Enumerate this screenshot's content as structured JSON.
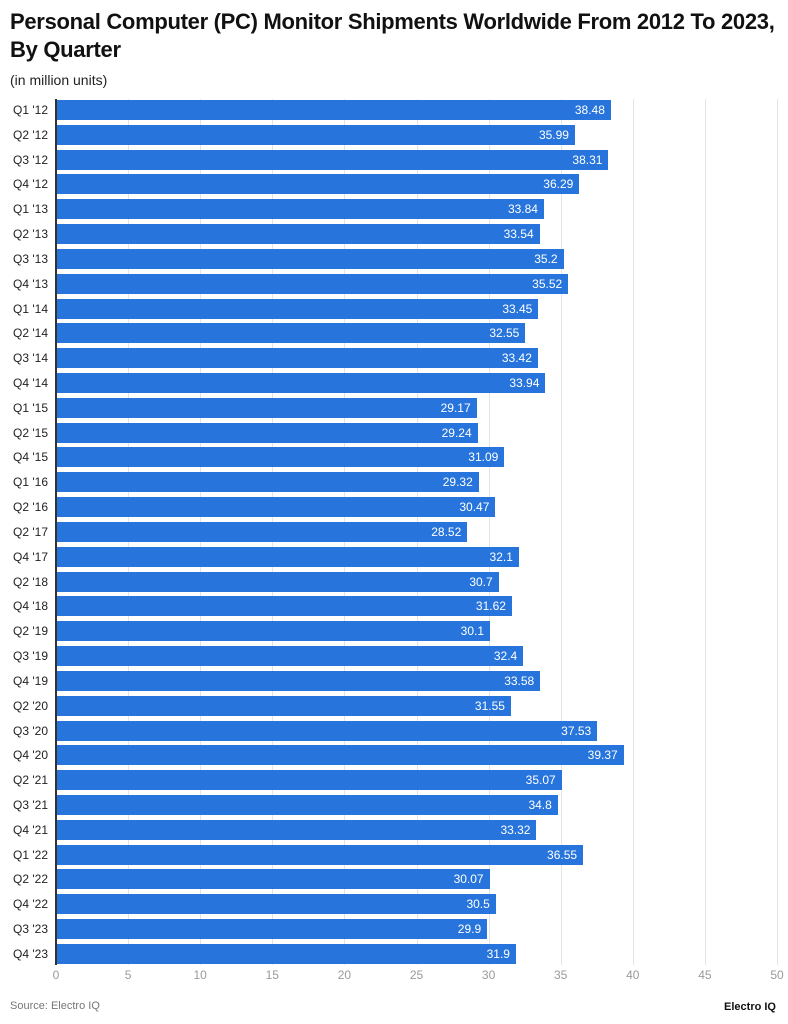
{
  "header": {
    "title": "Personal Computer (PC) Monitor Shipments Worldwide From 2012 To 2023, By Quarter",
    "subtitle": "(in million units)"
  },
  "footer": {
    "source": "Source: Electro IQ",
    "brand": "Electro IQ"
  },
  "colors": {
    "bar": "#2775dc",
    "bar_label": "#ffffff",
    "grid": "#e4e4e4",
    "tick_label": "#9a9a9a"
  },
  "chart_data": {
    "type": "bar",
    "orientation": "horizontal",
    "title": "Personal Computer (PC) Monitor Shipments Worldwide From 2012 To 2023, By Quarter",
    "subtitle": "(in million units)",
    "xlabel": "",
    "ylabel": "",
    "xlim": [
      0,
      50
    ],
    "x_ticks": [
      0,
      5,
      10,
      15,
      20,
      25,
      30,
      35,
      40,
      45,
      50
    ],
    "grid": true,
    "legend": null,
    "categories": [
      "Q1 '12",
      "Q2 '12",
      "Q3 '12",
      "Q4 '12",
      "Q1 '13",
      "Q2 '13",
      "Q3 '13",
      "Q4 '13",
      "Q1 '14",
      "Q2 '14",
      "Q3 '14",
      "Q4 '14",
      "Q1 '15",
      "Q2 '15",
      "Q4 '15",
      "Q1 '16",
      "Q2 '16",
      "Q2 '17",
      "Q4 '17",
      "Q2 '18",
      "Q4 '18",
      "Q2 '19",
      "Q3 '19",
      "Q4 '19",
      "Q2 '20",
      "Q3 '20",
      "Q4 '20",
      "Q2 '21",
      "Q3 '21",
      "Q4 '21",
      "Q1 '22",
      "Q2 '22",
      "Q4 '22",
      "Q3 '23",
      "Q4 '23"
    ],
    "values": [
      38.48,
      35.99,
      38.31,
      36.29,
      33.84,
      33.54,
      35.2,
      35.52,
      33.45,
      32.55,
      33.42,
      33.94,
      29.17,
      29.24,
      31.09,
      29.32,
      30.47,
      28.52,
      32.1,
      30.7,
      31.62,
      30.1,
      32.4,
      33.58,
      31.55,
      37.53,
      39.37,
      35.07,
      34.8,
      33.32,
      36.55,
      30.07,
      30.5,
      29.9,
      31.9
    ],
    "source": "Source: Electro IQ"
  }
}
